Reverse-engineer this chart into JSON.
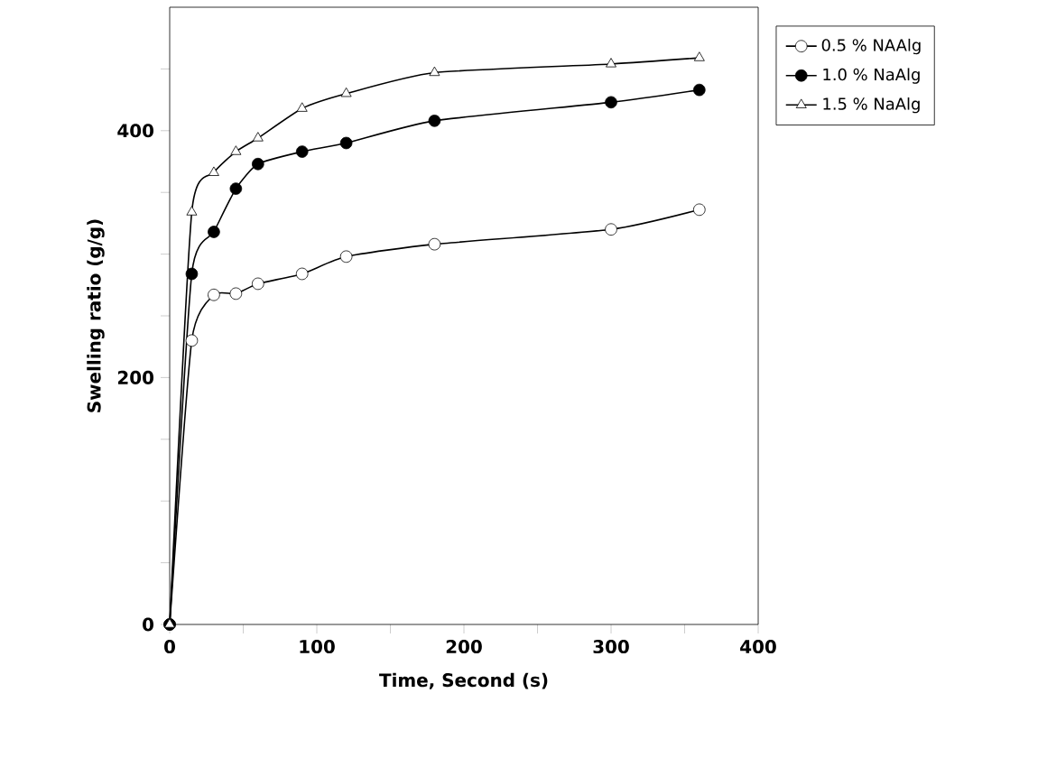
{
  "chart_data": {
    "type": "line",
    "xlabel": "Time, Second (s)",
    "ylabel": "Swelling ratio (g/g)",
    "x": [
      0,
      15,
      30,
      45,
      60,
      90,
      120,
      180,
      300,
      360
    ],
    "series": [
      {
        "name": "0.5 % NAAlg",
        "color": "#000000",
        "marker": "circle",
        "colors": [
          "#ffffff",
          "#ffffff",
          "#ffffff",
          "#ffffff",
          "#ffffff",
          "#ffffff",
          "#ffffff",
          "#ffffff",
          "#ffffff",
          "#ffffff"
        ],
        "values": [
          0,
          230,
          267,
          268,
          276,
          284,
          298,
          308,
          320,
          336
        ]
      },
      {
        "name": "1.0 % NaAlg",
        "color": "#000000",
        "marker": "circle",
        "values": [
          0,
          284,
          318,
          353,
          373,
          383,
          390,
          408,
          423,
          433
        ]
      },
      {
        "name": "1.5 % NaAlg",
        "color": "#000000",
        "marker": "triangle",
        "colors": [
          "#ffffff",
          "#ffffff",
          "#ffffff",
          "#ffffff",
          "#ffffff",
          "#ffffff",
          "#ffffff",
          "#ffffff",
          "#ffffff",
          "#ffffff"
        ],
        "values": [
          0,
          334,
          366,
          383,
          394,
          418,
          430,
          447,
          454,
          459
        ]
      }
    ],
    "xlim": [
      0,
      400
    ],
    "ylim": [
      0,
      500
    ],
    "xticks": [
      0,
      {
        "value": 50,
        "label": null
      },
      100,
      {
        "value": 150,
        "label": null
      },
      200,
      {
        "value": 250,
        "label": null
      },
      300,
      {
        "value": 350,
        "label": null
      },
      400
    ],
    "yticks": [
      0,
      {
        "value": 50,
        "label": null
      },
      {
        "value": 100,
        "label": null
      },
      {
        "value": 150,
        "label": null
      },
      200,
      {
        "value": 250,
        "label": null
      },
      {
        "value": 300,
        "label": null
      },
      {
        "value": 350,
        "label": null
      },
      400,
      {
        "value": 450,
        "label": null
      }
    ],
    "grid": false,
    "legend": "right",
    "line_style": "solid"
  }
}
